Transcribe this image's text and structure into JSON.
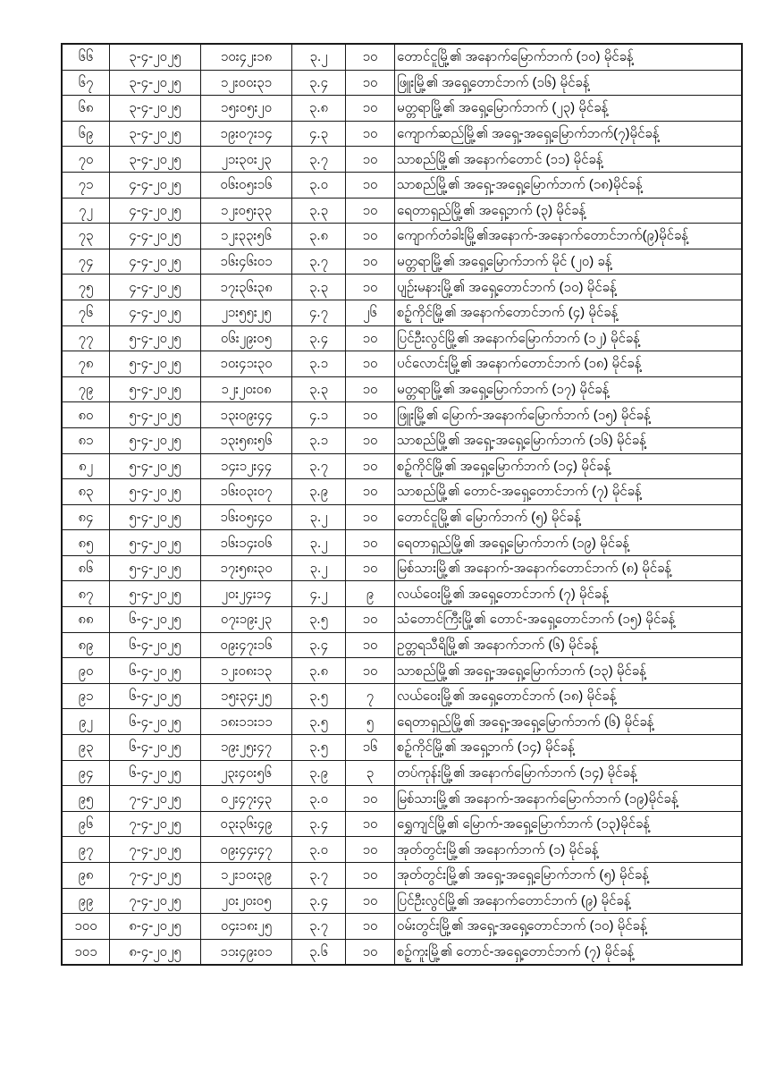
{
  "page": {
    "background_color": "#ffffff",
    "border_color": "#1a1a1a",
    "description_labels": {
      "row_count_visible": "36",
      "first_serial": "၆၆",
      "last_serial": "၁၀၁"
    }
  },
  "table": {
    "rows": [
      {
        "no": "၆၆",
        "date": "၃-၄-၂၀၂၅",
        "time": "၁၀း၄၂း၁၈",
        "mag": "၃.၂",
        "depth": "၁၀",
        "location": "တောင်ငူမြို့၏ အနောက်မြောက်ဘက် (၁၀) မိုင်ခန့်"
      },
      {
        "no": "၆၇",
        "date": "၃-၄-၂၀၂၅",
        "time": "၁၂း၀၀း၃၁",
        "mag": "၃.၄",
        "depth": "၁၀",
        "location": "ဖြူးမြို့၏ အရှေ့တောင်ဘက် (၁၆) မိုင်ခန့်"
      },
      {
        "no": "၆၈",
        "date": "၃-၄-၂၀၂၅",
        "time": "၁၅း၀၅း၂၀",
        "mag": "၃.၈",
        "depth": "၁၀",
        "location": "မတ္တရာမြို့၏ အရှေ့မြောက်ဘက် (၂၃) မိုင်ခန့်"
      },
      {
        "no": "၆၉",
        "date": "၃-၄-၂၀၂၅",
        "time": "၁၉း၀၇း၁၄",
        "mag": "၄.၃",
        "depth": "၁၀",
        "location": "ကျောက်ဆည်မြို့၏ အရှေ့-အရှေ့မြောက်ဘက်(၇)မိုင်ခန့်"
      },
      {
        "no": "၇၀",
        "date": "၃-၄-၂၀၂၅",
        "time": "၂၁း၃၀း၂၃",
        "mag": "၃.၇",
        "depth": "၁၀",
        "location": "သာစည်မြို့၏ အနောက်တောင် (၁၁) မိုင်ခန့်"
      },
      {
        "no": "၇၁",
        "date": "၄-၄-၂၀၂၅",
        "time": "၀၆း၀၅း၁၆",
        "mag": "၃.၀",
        "depth": "၁၀",
        "location": "သာစည်မြို့၏ အရှေ့-အရှေ့မြောက်ဘက် (၁၈)မိုင်ခန့်"
      },
      {
        "no": "၇၂",
        "date": "၄-၄-၂၀၂၅",
        "time": "၁၂း၀၅း၃၃",
        "mag": "၃.၃",
        "depth": "၁၀",
        "location": "ရေတာရှည်မြို့၏ အရှေ့ဘက် (၃) မိုင်ခန့်"
      },
      {
        "no": "၇၃",
        "date": "၄-၄-၂၀၂၅",
        "time": "၁၂း၃၃း၅၆",
        "mag": "၃.၈",
        "depth": "၁၀",
        "location": "ကျောက်တံခါးမြို့၏အနောက်-အနောက်တောင်ဘက်(၉)မိုင်ခန့်"
      },
      {
        "no": "၇၄",
        "date": "၄-၄-၂၀၂၅",
        "time": "၁၆း၄၆း၀၁",
        "mag": "၃.၇",
        "depth": "၁၀",
        "location": "မတ္တရာမြို့၏ အရှေ့မြောက်ဘက် မိုင် (၂၀) ခန့်"
      },
      {
        "no": "၇၅",
        "date": "၄-၄-၂၀၂၅",
        "time": "၁၇း၃၆း၃၈",
        "mag": "၃.၃",
        "depth": "၁၀",
        "location": "ပျဉ်းမနားမြို့၏ အရှေ့တောင်ဘက် (၁၀) မိုင်ခန့်"
      },
      {
        "no": "၇၆",
        "date": "၄-၄-၂၀၂၅",
        "time": "၂၁း၅၅း၂၅",
        "mag": "၄.၇",
        "depth": "၂၆",
        "location": "စဉ့်ကိုင်မြို့၏ အနောက်တောင်ဘက် (၄) မိုင်ခန့်"
      },
      {
        "no": "၇၇",
        "date": "၅-၄-၂၀၂၅",
        "time": "၀၆း၂၉း၀၅",
        "mag": "၃.၄",
        "depth": "၁၀",
        "location": "ပြင်ဦးလွင်မြို့၏ အနောက်မြောက်ဘက် (၁၂) မိုင်ခန့်"
      },
      {
        "no": "၇၈",
        "date": "၅-၄-၂၀၂၅",
        "time": "၁၀း၄၁း၃၀",
        "mag": "၃.၁",
        "depth": "၁၀",
        "location": "ပင်လောင်းမြို့၏ အနောက်တောင်ဘက် (၁၈) မိုင်ခန့်"
      },
      {
        "no": "၇၉",
        "date": "၅-၄-၂၀၂၅",
        "time": "၁၂း၂၀း၀၈",
        "mag": "၃.၃",
        "depth": "၁၀",
        "location": "မတ္တရာမြို့၏ အရှေ့မြောက်ဘက် (၁၇) မိုင်ခန့်"
      },
      {
        "no": "၈၀",
        "date": "၅-၄-၂၀၂၅",
        "time": "၁၃း၀၉း၄၄",
        "mag": "၄.၁",
        "depth": "၁၀",
        "location": "ဖြူးမြို့၏ မြောက်-အနောက်မြောက်ဘက် (၁၅) မိုင်ခန့်"
      },
      {
        "no": "၈၁",
        "date": "၅-၄-၂၀၂၅",
        "time": "၁၃း၅၈း၅၆",
        "mag": "၃.၁",
        "depth": "၁၀",
        "location": "သာစည်မြို့၏ အရှေ့-အရှေ့မြောက်ဘက် (၁၆) မိုင်ခန့်"
      },
      {
        "no": "၈၂",
        "date": "၅-၄-၂၀၂၅",
        "time": "၁၄း၁၂း၄၄",
        "mag": "၃.၇",
        "depth": "၁၀",
        "location": "စဉ့်ကိုင်မြို့၏ အရှေ့မြောက်ဘက် (၁၄) မိုင်ခန့်"
      },
      {
        "no": "၈၃",
        "date": "၅-၄-၂၀၂၅",
        "time": "၁၆း၀၃း၀၇",
        "mag": "၃.၉",
        "depth": "၁၀",
        "location": "သာစည်မြို့၏ တောင်-အရှေ့တောင်ဘက် (၇) မိုင်ခန့်"
      },
      {
        "no": "၈၄",
        "date": "၅-၄-၂၀၂၅",
        "time": "၁၆း၀၅း၄၀",
        "mag": "၃.၂",
        "depth": "၁၀",
        "location": "တောင်ငူမြို့၏ မြောက်ဘက် (၅) မိုင်ခန့်"
      },
      {
        "no": "၈၅",
        "date": "၅-၄-၂၀၂၅",
        "time": "၁၆း၁၄း၀၆",
        "mag": "၃.၂",
        "depth": "၁၀",
        "location": "ရေတာရှည်မြို့၏ အရှေ့မြောက်ဘက် (၁၉) မိုင်ခန့်"
      },
      {
        "no": "၈၆",
        "date": "၅-၄-၂၀၂၅",
        "time": "၁၇း၅၈း၃၀",
        "mag": "၃.၂",
        "depth": "၁၀",
        "location": "မြစ်သားမြို့၏ အနောက်-အနောက်တောင်ဘက် (၈) မိုင်ခန့်"
      },
      {
        "no": "၈၇",
        "date": "၅-၄-၂၀၂၅",
        "time": "၂၀း၂၄း၁၄",
        "mag": "၄.၂",
        "depth": "၉",
        "location": "လယ်ဝေးမြို့၏ အရှေ့တောင်ဘက် (၇) မိုင်ခန့်"
      },
      {
        "no": "၈၈",
        "date": "၆-၄-၂၀၂၅",
        "time": "၀၇း၁၉း၂၃",
        "mag": "၃.၅",
        "depth": "၁၀",
        "location": "သံတောင်ကြီးမြို့၏ တောင်-အရှေ့တောင်ဘက် (၁၅) မိုင်ခန့်"
      },
      {
        "no": "၈၉",
        "date": "၆-၄-၂၀၂၅",
        "time": "၀၉း၄၇း၁၆",
        "mag": "၃.၄",
        "depth": "၁၀",
        "location": "ဥတ္တရသီရိမြို့၏ အနောက်ဘက် (၆) မိုင်ခန့်"
      },
      {
        "no": "၉၀",
        "date": "၆-၄-၂၀၂၅",
        "time": "၁၂း၀၈း၁၃",
        "mag": "၃.၈",
        "depth": "၁၀",
        "location": "သာစည်မြို့၏ အရှေ့-အရှေ့မြောက်ဘက် (၁၃) မိုင်ခန့်"
      },
      {
        "no": "၉၁",
        "date": "၆-၄-၂၀၂၅",
        "time": "၁၅း၃၄း၂၅",
        "mag": "၃.၅",
        "depth": "၇",
        "location": "လယ်ဝေးမြို့၏ အရှေ့တောင်ဘက် (၁၈) မိုင်ခန့်"
      },
      {
        "no": "၉၂",
        "date": "၆-၄-၂၀၂၅",
        "time": "၁၈း၁၁း၁၁",
        "mag": "၃.၅",
        "depth": "၅",
        "location": "ရေတာရှည်မြို့၏ အရှေ့-အရှေ့မြောက်ဘက် (၆) မိုင်ခန့်"
      },
      {
        "no": "၉၃",
        "date": "၆-၄-၂၀၂၅",
        "time": "၁၉း၂၅း၄၇",
        "mag": "၃.၅",
        "depth": "၁၆",
        "location": "စဉ့်ကိုင်မြို့၏ အရှေ့ဘက် (၁၄) မိုင်ခန့်"
      },
      {
        "no": "၉၄",
        "date": "၆-၄-၂၀၂၅",
        "time": "၂၃း၄၀း၅၆",
        "mag": "၃.၉",
        "depth": "၃",
        "location": "တပ်ကုန်းမြို့၏ အနောက်မြောက်ဘက် (၁၄) မိုင်ခန့်"
      },
      {
        "no": "၉၅",
        "date": "၇-၄-၂၀၂၅",
        "time": "၀၂း၄၇း၄၃",
        "mag": "၃.၀",
        "depth": "၁၀",
        "location": "မြစ်သားမြို့၏ အနောက်-အနောက်မြောက်ဘက် (၁၉)မိုင်ခန့်"
      },
      {
        "no": "၉၆",
        "date": "၇-၄-၂၀၂၅",
        "time": "၀၃း၃၆း၄၉",
        "mag": "၃.၄",
        "depth": "၁၀",
        "location": "ရွှေကျင်မြို့၏ မြောက်-အရှေ့မြောက်ဘက် (၁၃)မိုင်ခန့်"
      },
      {
        "no": "၉၇",
        "date": "၇-၄-၂၀၂၅",
        "time": "၀၉း၄၄း၄၇",
        "mag": "၃.၀",
        "depth": "၁၀",
        "location": "အုတ်တွင်းမြို့၏ အနောက်ဘက် (၁) မိုင်ခန့်"
      },
      {
        "no": "၉၈",
        "date": "၇-၄-၂၀၂၅",
        "time": "၁၂း၁၀း၃၉",
        "mag": "၃.၇",
        "depth": "၁၀",
        "location": "အုတ်တွင်းမြို့၏ အရှေ့-အရှေ့မြောက်ဘက် (၅) မိုင်ခန့်"
      },
      {
        "no": "၉၉",
        "date": "၇-၄-၂၀၂၅",
        "time": "၂၀း၂၀း၀၅",
        "mag": "၃.၄",
        "depth": "၁၀",
        "location": "ပြင်ဦးလွင်မြို့၏ အနောက်တောင်ဘက် (၉) မိုင်ခန့်"
      },
      {
        "no": "၁၀၀",
        "date": "၈-၄-၂၀၂၅",
        "time": "၀၄း၁၈း၂၅",
        "mag": "၃.၇",
        "depth": "၁၀",
        "location": "ဝမ်းတွင်းမြို့၏ အရှေ့-အရှေ့တောင်ဘက် (၁၀) မိုင်ခန့်"
      },
      {
        "no": "၁၀၁",
        "date": "၈-၄-၂၀၂၅",
        "time": "၁၁း၄၉း၀၁",
        "mag": "၃.၆",
        "depth": "၁၀",
        "location": "စဉ့်ကူးမြို့၏ တောင်-အရှေ့တောင်ဘက် (၇) မိုင်ခန့်"
      }
    ]
  }
}
